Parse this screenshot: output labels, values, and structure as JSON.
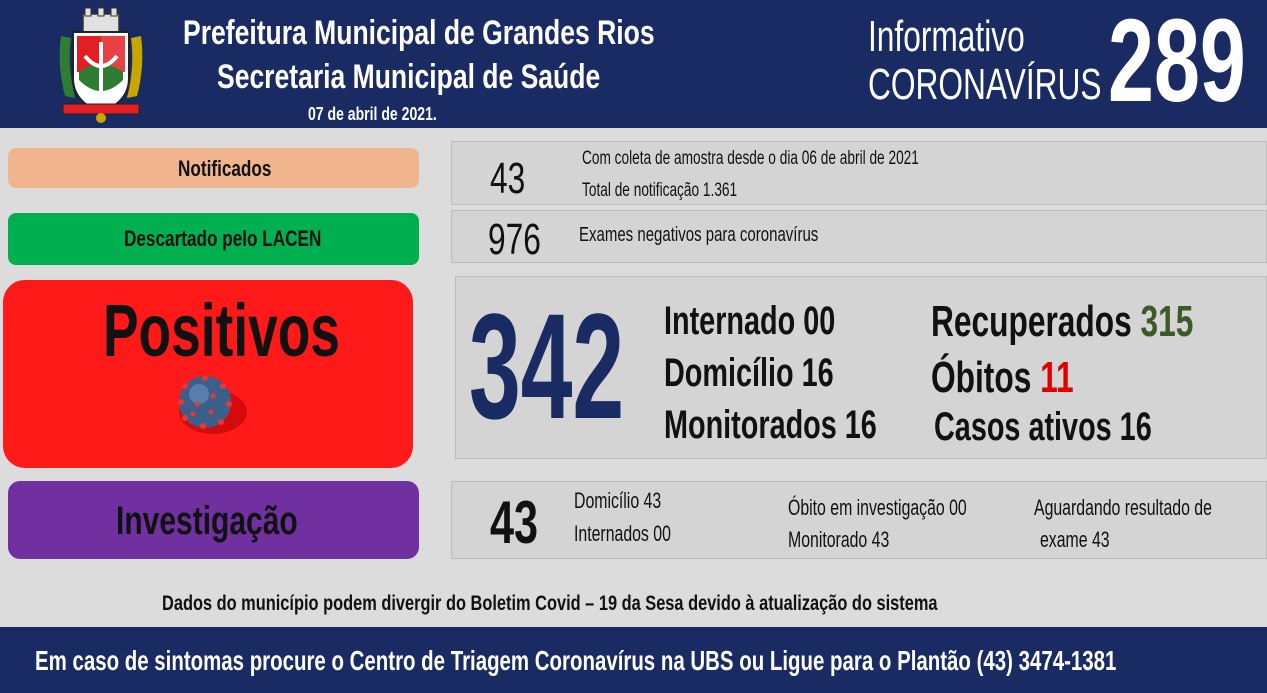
{
  "header": {
    "line1": "Prefeitura Municipal de Grandes Rios",
    "line2": "Secretaria Municipal de Saúde",
    "date": "07 de abril  de 2021.",
    "info_line1": "Informativo",
    "info_line2": "CORONAVÍRUS",
    "bulletin_number": "289"
  },
  "notificados": {
    "label": "Notificados",
    "value": "43",
    "note1": "Com coleta de amostra desde o dia 06 de abril de 2021",
    "note2": "Total de notificação 1.361",
    "color": "#f1b58e"
  },
  "descartado": {
    "label": "Descartado  pelo LACEN",
    "value": "976",
    "note": "Exames negativos  para coronavírus",
    "color": "#00b050"
  },
  "positivos": {
    "label": "Positivos",
    "value": "342",
    "internado": "Internado 00",
    "domicilio": "Domicílio 16",
    "monitorados": "Monitorados 16",
    "recuperados_label": "Recuperados",
    "recuperados_value": "315",
    "obitos_label": "Óbitos",
    "obitos_value": "11",
    "casos_ativos": "Casos ativos 16",
    "color": "#ff1a1a",
    "value_color": "#1a2a63",
    "recuperados_color": "#3a5a28",
    "obitos_color": "#e00000"
  },
  "investigacao": {
    "label": "Investigação",
    "value": "43",
    "domicilio": "Domicílio  43",
    "internados": "Internados 00",
    "obito": "Óbito  em investigação  00",
    "monitorado": "Monitorado 43",
    "aguardando1": "Aguardando resultado de",
    "aguardando2": "exame 43",
    "color": "#7030a0"
  },
  "disclaimer": "Dados  do município  podem  divergir  do Boletim  Covid – 19 da Sesa devido à atualização  do sistema",
  "footer": "Em caso de sintomas  procure  o Centro de Triagem  Coronavírus  na UBS ou Ligue para o Plantão  (43) 3474-1381"
}
